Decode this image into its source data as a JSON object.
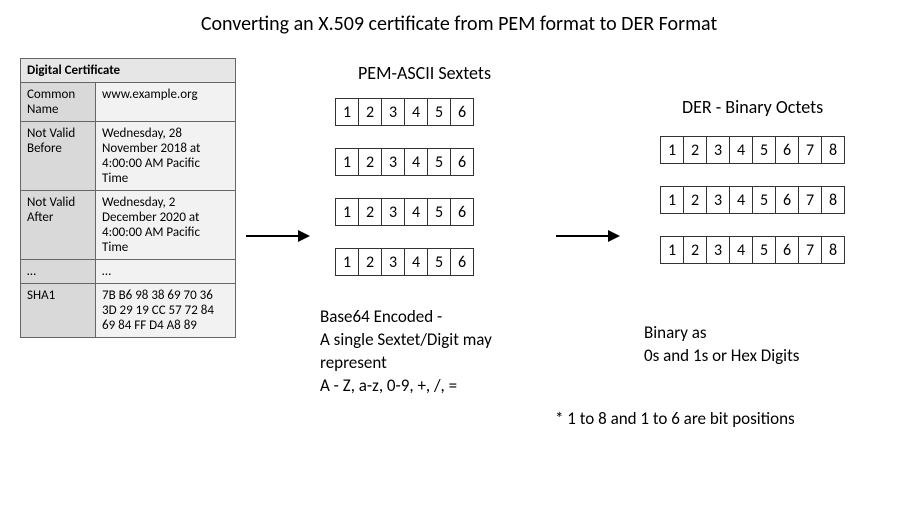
{
  "title": "Converting an X.509 certificate from PEM format to DER Format",
  "cert_table": {
    "header": "Digital Certificate",
    "rows": [
      {
        "label": "Common Name",
        "value": "www.example.org"
      },
      {
        "label": "Not Valid Before",
        "value": "Wednesday, 28 November 2018 at 4:00:00 AM Pacific Time"
      },
      {
        "label": "Not Valid After",
        "value": "Wednesday, 2 December 2020 at 4:00:00 AM Pacific Time"
      },
      {
        "label": "…",
        "value": "…"
      },
      {
        "label": "SHA1",
        "value": "7B B6 98 38 69 70 36 3D 29 19 CC 57 72 84 69 84 FF D4 A8 89"
      }
    ]
  },
  "pem": {
    "title": "PEM-ASCII Sextets",
    "rows": 4,
    "cells": [
      "1",
      "2",
      "3",
      "4",
      "5",
      "6"
    ],
    "desc": "Base64 Encoded -\nA single Sextet/Digit may\nrepresent\nA - Z, a-z, 0-9, +, /, ="
  },
  "der": {
    "title": "DER - Binary Octets",
    "rows": 3,
    "cells": [
      "1",
      "2",
      "3",
      "4",
      "5",
      "6",
      "7",
      "8"
    ],
    "desc": "Binary as\n0s and 1s or Hex Digits"
  },
  "footnote": "* 1 to 8 and 1 to 6 are bit positions",
  "arrows": {
    "a1": {
      "width": 60
    },
    "a2": {
      "width": 60
    }
  },
  "colors": {
    "table_header_bg": "#e6e6e6",
    "table_label_bg": "#d9d9d9",
    "table_value_bg": "#f2f2f2",
    "border": "#666666",
    "text": "#000000",
    "bg": "#ffffff"
  }
}
